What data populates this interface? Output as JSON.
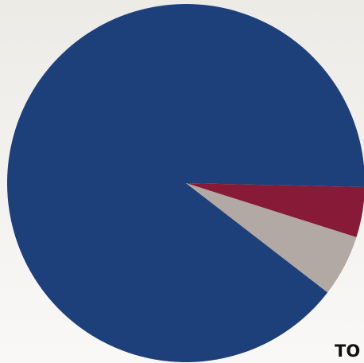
{
  "chart_data": {
    "type": "pie",
    "title": "",
    "slices": [
      {
        "value": 87.2,
        "color": "#1e407a"
      },
      {
        "value": 4.4,
        "color": "#861a37"
      },
      {
        "value": 5.4,
        "color": "#b2a8a4"
      }
    ],
    "total_label": "TO"
  },
  "colors": {
    "background_top": "#ecebe6",
    "background_bottom": "#faf8f6",
    "label_text": "#111111"
  }
}
